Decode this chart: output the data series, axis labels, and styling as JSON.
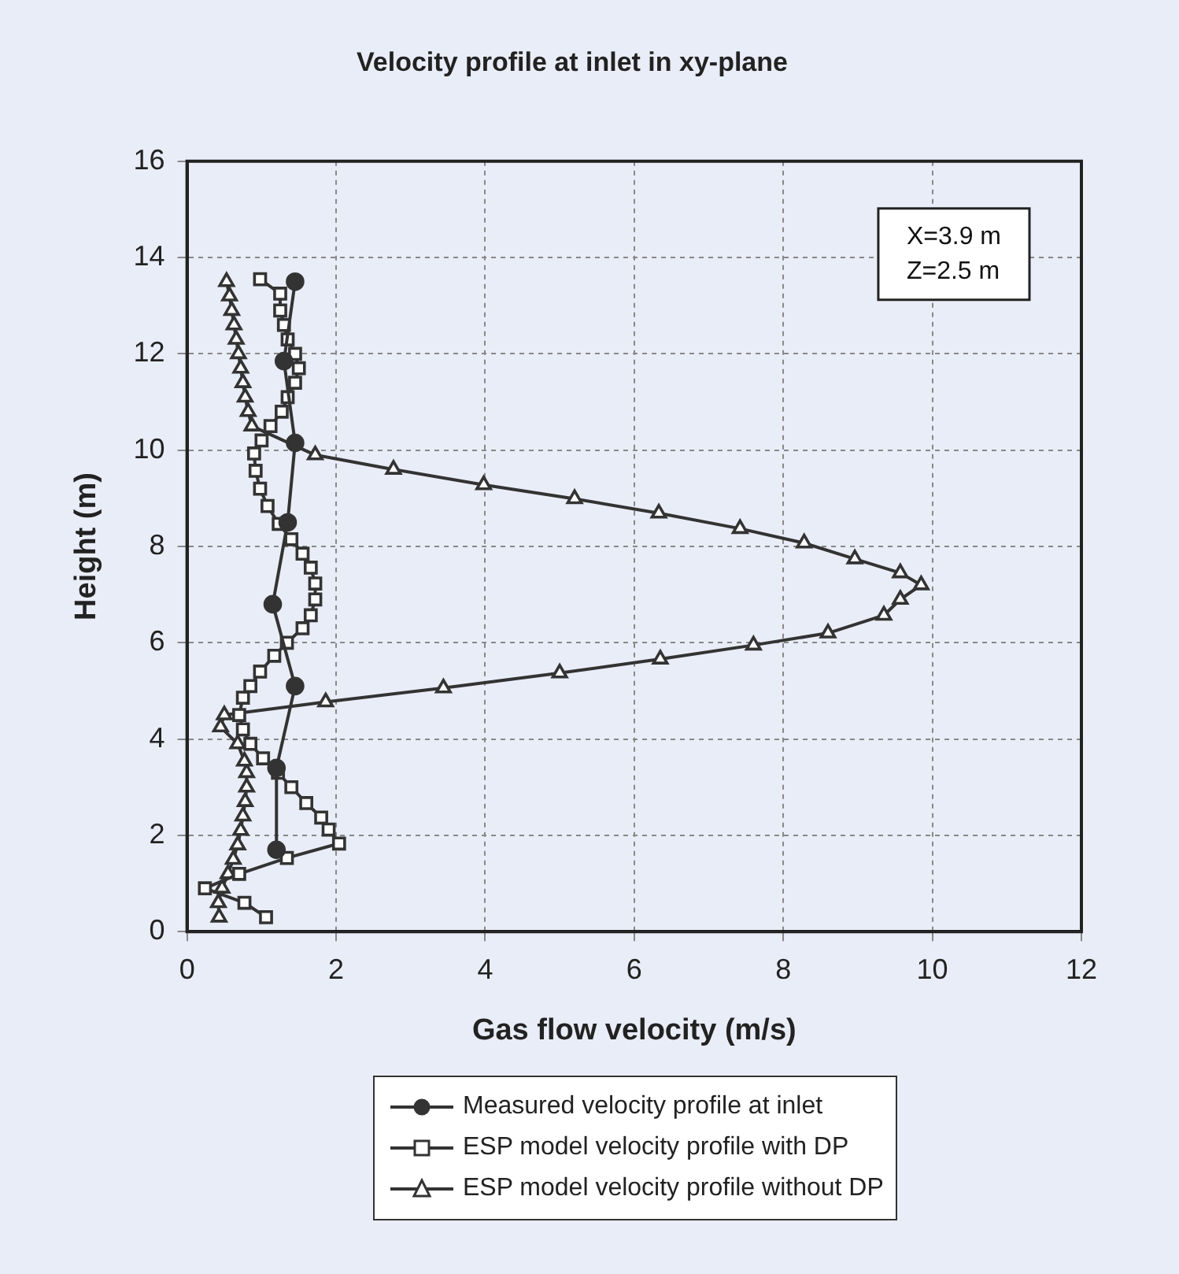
{
  "chart_data": {
    "type": "line",
    "title": "Velocity profile at inlet in xy-plane",
    "xlabel": "Gas flow velocity (m/s)",
    "ylabel": "Height (m)",
    "annotations": [
      "X=3.9 m\nZ=2.5 m"
    ],
    "xlim": [
      0,
      12
    ],
    "xticks": [
      0,
      2,
      4,
      6,
      8,
      10,
      12
    ],
    "ylim": [
      0,
      16
    ],
    "yticks": [
      0,
      2,
      4,
      6,
      8,
      10,
      12,
      14,
      16
    ],
    "grid": true,
    "legend": "bottom",
    "series": [
      {
        "name": "Measured velocity profile at inlet",
        "color": "#333333",
        "marker": "circle",
        "x": [
          1.2,
          1.2,
          1.45,
          1.15,
          1.35,
          1.45,
          1.3,
          1.45
        ],
        "values": [
          1.7,
          3.4,
          5.1,
          6.8,
          8.5,
          10.15,
          11.85,
          13.5
        ]
      },
      {
        "name": "ESP model velocity profile with DP",
        "color": "#333333",
        "marker": "square",
        "x": [
          1.06,
          0.77,
          0.24,
          0.7,
          1.34,
          2.04,
          1.9,
          1.8,
          1.6,
          1.4,
          1.22,
          1.02,
          0.85,
          0.75,
          0.7,
          0.75,
          0.85,
          0.98,
          1.17,
          1.34,
          1.55,
          1.66,
          1.72,
          1.72,
          1.66,
          1.55,
          1.4,
          1.23,
          1.08,
          0.98,
          0.92,
          0.9,
          1.0,
          1.12,
          1.27,
          1.35,
          1.45,
          1.5,
          1.45,
          1.35,
          1.3,
          1.25,
          1.25,
          0.98
        ],
        "values": [
          0.3,
          0.6,
          0.9,
          1.2,
          1.53,
          1.83,
          2.12,
          2.37,
          2.67,
          3.0,
          3.3,
          3.6,
          3.9,
          4.2,
          4.5,
          4.86,
          5.1,
          5.4,
          5.73,
          6.0,
          6.3,
          6.57,
          6.9,
          7.23,
          7.56,
          7.85,
          8.15,
          8.47,
          8.84,
          9.2,
          9.57,
          9.93,
          10.2,
          10.5,
          10.8,
          11.1,
          11.4,
          11.7,
          12.0,
          12.3,
          12.6,
          12.9,
          13.25,
          13.55
        ]
      },
      {
        "name": "ESP model velocity profile without DP",
        "color": "#333333",
        "marker": "triangle",
        "x": [
          0.43,
          0.42,
          0.47,
          0.55,
          0.62,
          0.68,
          0.72,
          0.75,
          0.78,
          0.8,
          0.8,
          0.77,
          0.68,
          0.45,
          0.5,
          1.86,
          3.44,
          5.0,
          6.35,
          7.6,
          8.6,
          9.35,
          9.57,
          9.85,
          9.57,
          8.96,
          8.28,
          7.42,
          6.33,
          5.2,
          3.98,
          2.77,
          1.72,
          0.87,
          0.82,
          0.78,
          0.75,
          0.72,
          0.69,
          0.66,
          0.63,
          0.6,
          0.57,
          0.53
        ],
        "values": [
          0.3,
          0.6,
          0.9,
          1.2,
          1.5,
          1.8,
          2.1,
          2.4,
          2.7,
          3.0,
          3.3,
          3.54,
          3.9,
          4.25,
          4.5,
          4.77,
          5.06,
          5.37,
          5.66,
          5.95,
          6.2,
          6.57,
          6.9,
          7.2,
          7.45,
          7.74,
          8.07,
          8.37,
          8.69,
          8.99,
          9.28,
          9.6,
          9.9,
          10.5,
          10.8,
          11.1,
          11.4,
          11.7,
          12.0,
          12.3,
          12.6,
          12.9,
          13.2,
          13.5
        ]
      }
    ]
  }
}
